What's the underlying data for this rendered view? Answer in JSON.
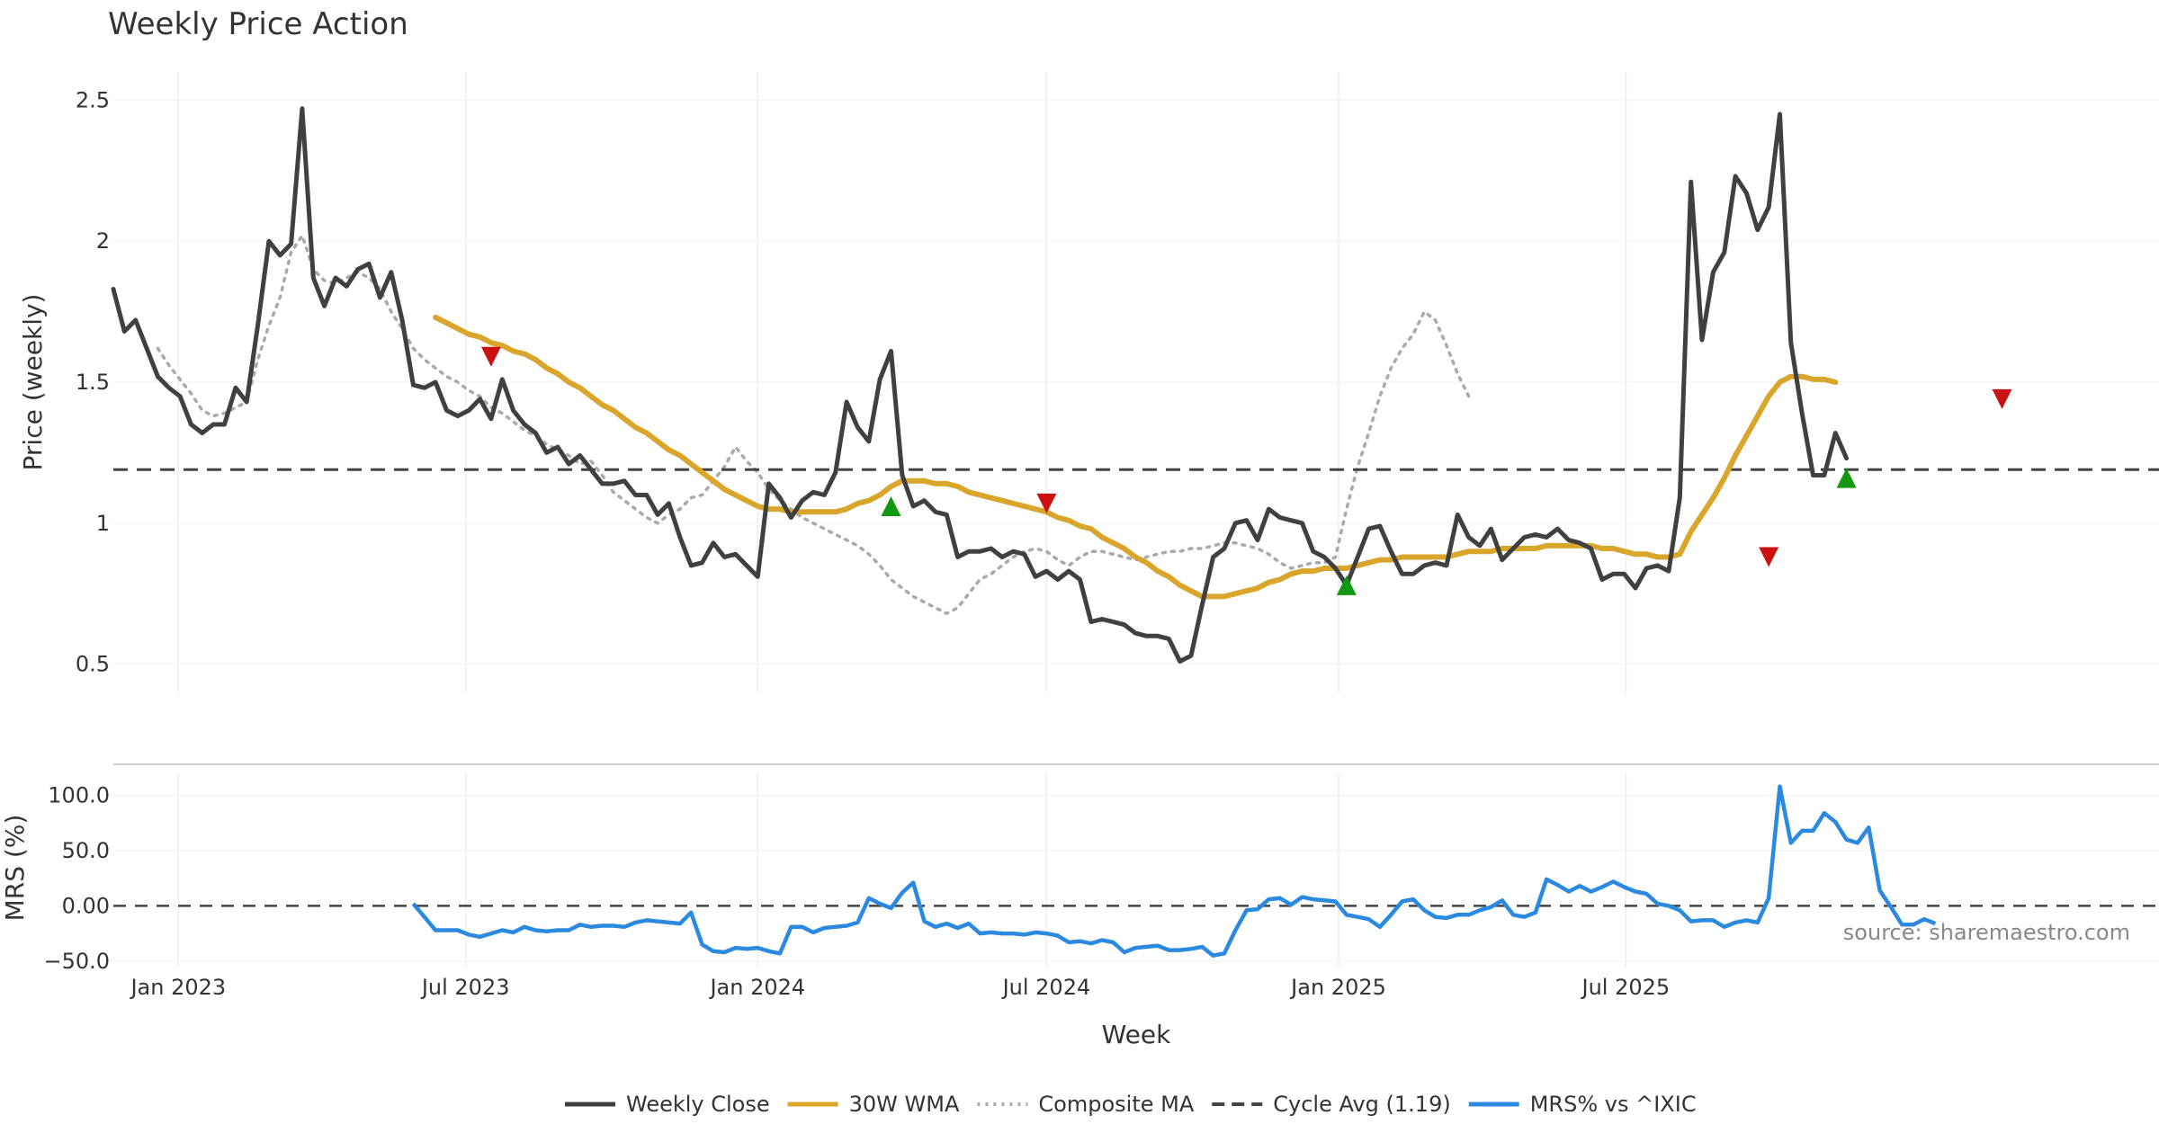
{
  "chart_data": [
    {
      "type": "line",
      "title": "Weekly Price Action",
      "ylabel": "Price (weekly)",
      "ylim": [
        0.4,
        2.6
      ],
      "yticks": [
        "0.5",
        "1",
        "1.5",
        "2",
        "2.5"
      ],
      "grid": true,
      "x_start": "2022-11-21",
      "week_step_days": 7,
      "series": [
        {
          "name": "Weekly Close",
          "color": "#404040",
          "style": "solid",
          "values": [
            1.83,
            1.68,
            1.72,
            1.62,
            1.52,
            1.48,
            1.45,
            1.35,
            1.32,
            1.35,
            1.35,
            1.48,
            1.43,
            1.7,
            2.0,
            1.95,
            1.99,
            2.47,
            1.87,
            1.77,
            1.87,
            1.84,
            1.9,
            1.92,
            1.8,
            1.89,
            1.72,
            1.49,
            1.48,
            1.5,
            1.4,
            1.38,
            1.4,
            1.44,
            1.37,
            1.51,
            1.4,
            1.35,
            1.32,
            1.25,
            1.27,
            1.21,
            1.24,
            1.19,
            1.14,
            1.14,
            1.15,
            1.1,
            1.1,
            1.03,
            1.07,
            0.95,
            0.85,
            0.86,
            0.93,
            0.88,
            0.89,
            0.85,
            0.81,
            1.14,
            1.09,
            1.02,
            1.08,
            1.11,
            1.1,
            1.18,
            1.43,
            1.34,
            1.29,
            1.51,
            1.61,
            1.17,
            1.06,
            1.08,
            1.04,
            1.03,
            0.88,
            0.9,
            0.9,
            0.91,
            0.88,
            0.9,
            0.89,
            0.81,
            0.83,
            0.8,
            0.83,
            0.8,
            0.65,
            0.66,
            0.65,
            0.64,
            0.61,
            0.6,
            0.6,
            0.59,
            0.51,
            0.53,
            0.71,
            0.88,
            0.91,
            1.0,
            1.01,
            0.94,
            1.05,
            1.02,
            1.01,
            1.0,
            0.9,
            0.88,
            0.84,
            0.78,
            0.88,
            0.98,
            0.99,
            0.9,
            0.82,
            0.82,
            0.85,
            0.86,
            0.85,
            1.03,
            0.95,
            0.92,
            0.98,
            0.87,
            0.91,
            0.95,
            0.96,
            0.95,
            0.98,
            0.94,
            0.93,
            0.91,
            0.8,
            0.82,
            0.82,
            0.77,
            0.84,
            0.85,
            0.83,
            1.09,
            2.21,
            1.65,
            1.89,
            1.96,
            2.23,
            2.17,
            2.04,
            2.12,
            2.45,
            1.64,
            1.39,
            1.17,
            1.17,
            1.32,
            1.23
          ]
        },
        {
          "name": "30W WMA",
          "color": "#d9a52b",
          "style": "solid",
          "x_offset": 29,
          "values": [
            1.73,
            1.71,
            1.69,
            1.67,
            1.66,
            1.64,
            1.63,
            1.61,
            1.6,
            1.58,
            1.55,
            1.53,
            1.5,
            1.48,
            1.45,
            1.42,
            1.4,
            1.37,
            1.34,
            1.32,
            1.29,
            1.26,
            1.24,
            1.21,
            1.18,
            1.15,
            1.12,
            1.1,
            1.08,
            1.06,
            1.05,
            1.05,
            1.04,
            1.04,
            1.04,
            1.04,
            1.04,
            1.05,
            1.07,
            1.08,
            1.1,
            1.13,
            1.15,
            1.15,
            1.15,
            1.14,
            1.14,
            1.13,
            1.11,
            1.1,
            1.09,
            1.08,
            1.07,
            1.06,
            1.05,
            1.04,
            1.02,
            1.01,
            0.99,
            0.98,
            0.95,
            0.93,
            0.91,
            0.88,
            0.86,
            0.83,
            0.81,
            0.78,
            0.76,
            0.74,
            0.74,
            0.74,
            0.75,
            0.76,
            0.77,
            0.79,
            0.8,
            0.82,
            0.83,
            0.83,
            0.84,
            0.84,
            0.84,
            0.85,
            0.86,
            0.87,
            0.87,
            0.88,
            0.88,
            0.88,
            0.88,
            0.88,
            0.89,
            0.9,
            0.9,
            0.9,
            0.91,
            0.91,
            0.91,
            0.91,
            0.92,
            0.92,
            0.92,
            0.92,
            0.92,
            0.91,
            0.91,
            0.9,
            0.89,
            0.89,
            0.88,
            0.88,
            0.89,
            0.97,
            1.03,
            1.09,
            1.16,
            1.24,
            1.31,
            1.38,
            1.45,
            1.5,
            1.52,
            1.52,
            1.51,
            1.51,
            1.5
          ]
        },
        {
          "name": "Composite MA",
          "color": "#aaaaaa",
          "style": "dotted",
          "x_offset": 4,
          "values": [
            1.62,
            1.56,
            1.51,
            1.46,
            1.4,
            1.38,
            1.39,
            1.41,
            1.43,
            1.58,
            1.7,
            1.8,
            1.96,
            2.02,
            1.9,
            1.86,
            1.85,
            1.87,
            1.89,
            1.87,
            1.83,
            1.75,
            1.69,
            1.62,
            1.58,
            1.55,
            1.52,
            1.5,
            1.47,
            1.45,
            1.41,
            1.39,
            1.36,
            1.33,
            1.31,
            1.28,
            1.26,
            1.24,
            1.21,
            1.22,
            1.17,
            1.11,
            1.08,
            1.05,
            1.02,
            1.0,
            1.03,
            1.05,
            1.09,
            1.1,
            1.15,
            1.2,
            1.27,
            1.22,
            1.18,
            1.12,
            1.08,
            1.05,
            1.02,
            1.0,
            0.98,
            0.96,
            0.94,
            0.92,
            0.89,
            0.85,
            0.8,
            0.77,
            0.74,
            0.72,
            0.7,
            0.68,
            0.7,
            0.75,
            0.8,
            0.82,
            0.85,
            0.88,
            0.9,
            0.91,
            0.9,
            0.87,
            0.85,
            0.88,
            0.9,
            0.9,
            0.89,
            0.88,
            0.87,
            0.88,
            0.89,
            0.9,
            0.9,
            0.91,
            0.91,
            0.92,
            0.93,
            0.93,
            0.92,
            0.91,
            0.89,
            0.86,
            0.84,
            0.85,
            0.86,
            0.86,
            0.88,
            1.05,
            1.2,
            1.32,
            1.45,
            1.55,
            1.62,
            1.67,
            1.75,
            1.72,
            1.63,
            1.53,
            1.45
          ]
        },
        {
          "name": "Cycle Avg (1.19)",
          "color": "#444444",
          "style": "dashed",
          "constant": 1.19
        }
      ],
      "markers": [
        {
          "type": "sell",
          "week": 34,
          "y": 1.59,
          "color": "#cc1111"
        },
        {
          "type": "buy",
          "week": 70,
          "y": 1.06,
          "color": "#119911"
        },
        {
          "type": "sell",
          "week": 84,
          "y": 1.07,
          "color": "#cc1111"
        },
        {
          "type": "buy",
          "week": 111,
          "y": 0.78,
          "color": "#119911"
        },
        {
          "type": "sell",
          "week": 149,
          "y": 0.88,
          "color": "#cc1111"
        },
        {
          "type": "buy",
          "week": 156,
          "y": 1.16,
          "color": "#119911"
        },
        {
          "type": "sell",
          "week": 170,
          "y": 1.44,
          "color": "#cc1111"
        }
      ]
    },
    {
      "type": "line",
      "ylabel": "MRS (%)",
      "xlabel": "Week",
      "ylim": [
        -55,
        120
      ],
      "yticks": [
        "100.0",
        "50.0",
        "0.00",
        "−50.0"
      ],
      "zero_line": true,
      "series": [
        {
          "name": "MRS% vs ^IXIC",
          "color": "#2b8ae0",
          "style": "solid",
          "x_offset": 27,
          "values": [
            2,
            -10,
            -22,
            -22,
            -22,
            -26,
            -28,
            -25,
            -22,
            -24,
            -19,
            -22,
            -23,
            -22,
            -22,
            -17,
            -19,
            -18,
            -18,
            -19,
            -15,
            -13,
            -14,
            -15,
            -16,
            -6,
            -35,
            -41,
            -42,
            -38,
            -39,
            -38,
            -41,
            -43,
            -19,
            -19,
            -24,
            -20,
            -19,
            -18,
            -15,
            7,
            2,
            -2,
            12,
            21,
            -14,
            -19,
            -16,
            -20,
            -16,
            -25,
            -24,
            -25,
            -25,
            -26,
            -24,
            -25,
            -27,
            -33,
            -32,
            -34,
            -31,
            -33,
            -42,
            -38,
            -37,
            -36,
            -40,
            -40,
            -39,
            -37,
            -45,
            -43,
            -22,
            -4,
            -3,
            6,
            7,
            1,
            8,
            6,
            5,
            4,
            -8,
            -10,
            -12,
            -19,
            -8,
            4,
            6,
            -4,
            -10,
            -11,
            -8,
            -8,
            -4,
            -1,
            5,
            -8,
            -10,
            -6,
            24,
            19,
            13,
            18,
            13,
            17,
            22,
            17,
            13,
            11,
            2,
            0,
            -4,
            -14,
            -13,
            -13,
            -19,
            -15,
            -13,
            -15,
            7,
            108,
            57,
            68,
            68,
            84,
            76,
            60,
            57,
            71,
            14,
            -1,
            -17,
            -17,
            -12,
            -16
          ]
        }
      ],
      "source_text": "source: sharemaestro.com"
    }
  ],
  "x_axis": {
    "tick_labels": [
      "Jan 2023",
      "Jul 2023",
      "Jan 2024",
      "Jul 2024",
      "Jan 2025",
      "Jul 2025"
    ],
    "tick_dates": [
      "2023-01-01",
      "2023-07-01",
      "2024-01-01",
      "2024-07-01",
      "2025-01-01",
      "2025-07-01"
    ]
  },
  "legend": {
    "placement": "bottom-center",
    "items": [
      {
        "label": "Weekly Close",
        "color": "#404040",
        "style": "solid"
      },
      {
        "label": "30W WMA",
        "color": "#d9a52b",
        "style": "solid"
      },
      {
        "label": "Composite MA",
        "color": "#aaaaaa",
        "style": "dotted"
      },
      {
        "label": "Cycle Avg (1.19)",
        "color": "#444444",
        "style": "dashed"
      },
      {
        "label": "MRS% vs ^IXIC",
        "color": "#2b8ae0",
        "style": "solid"
      }
    ]
  }
}
